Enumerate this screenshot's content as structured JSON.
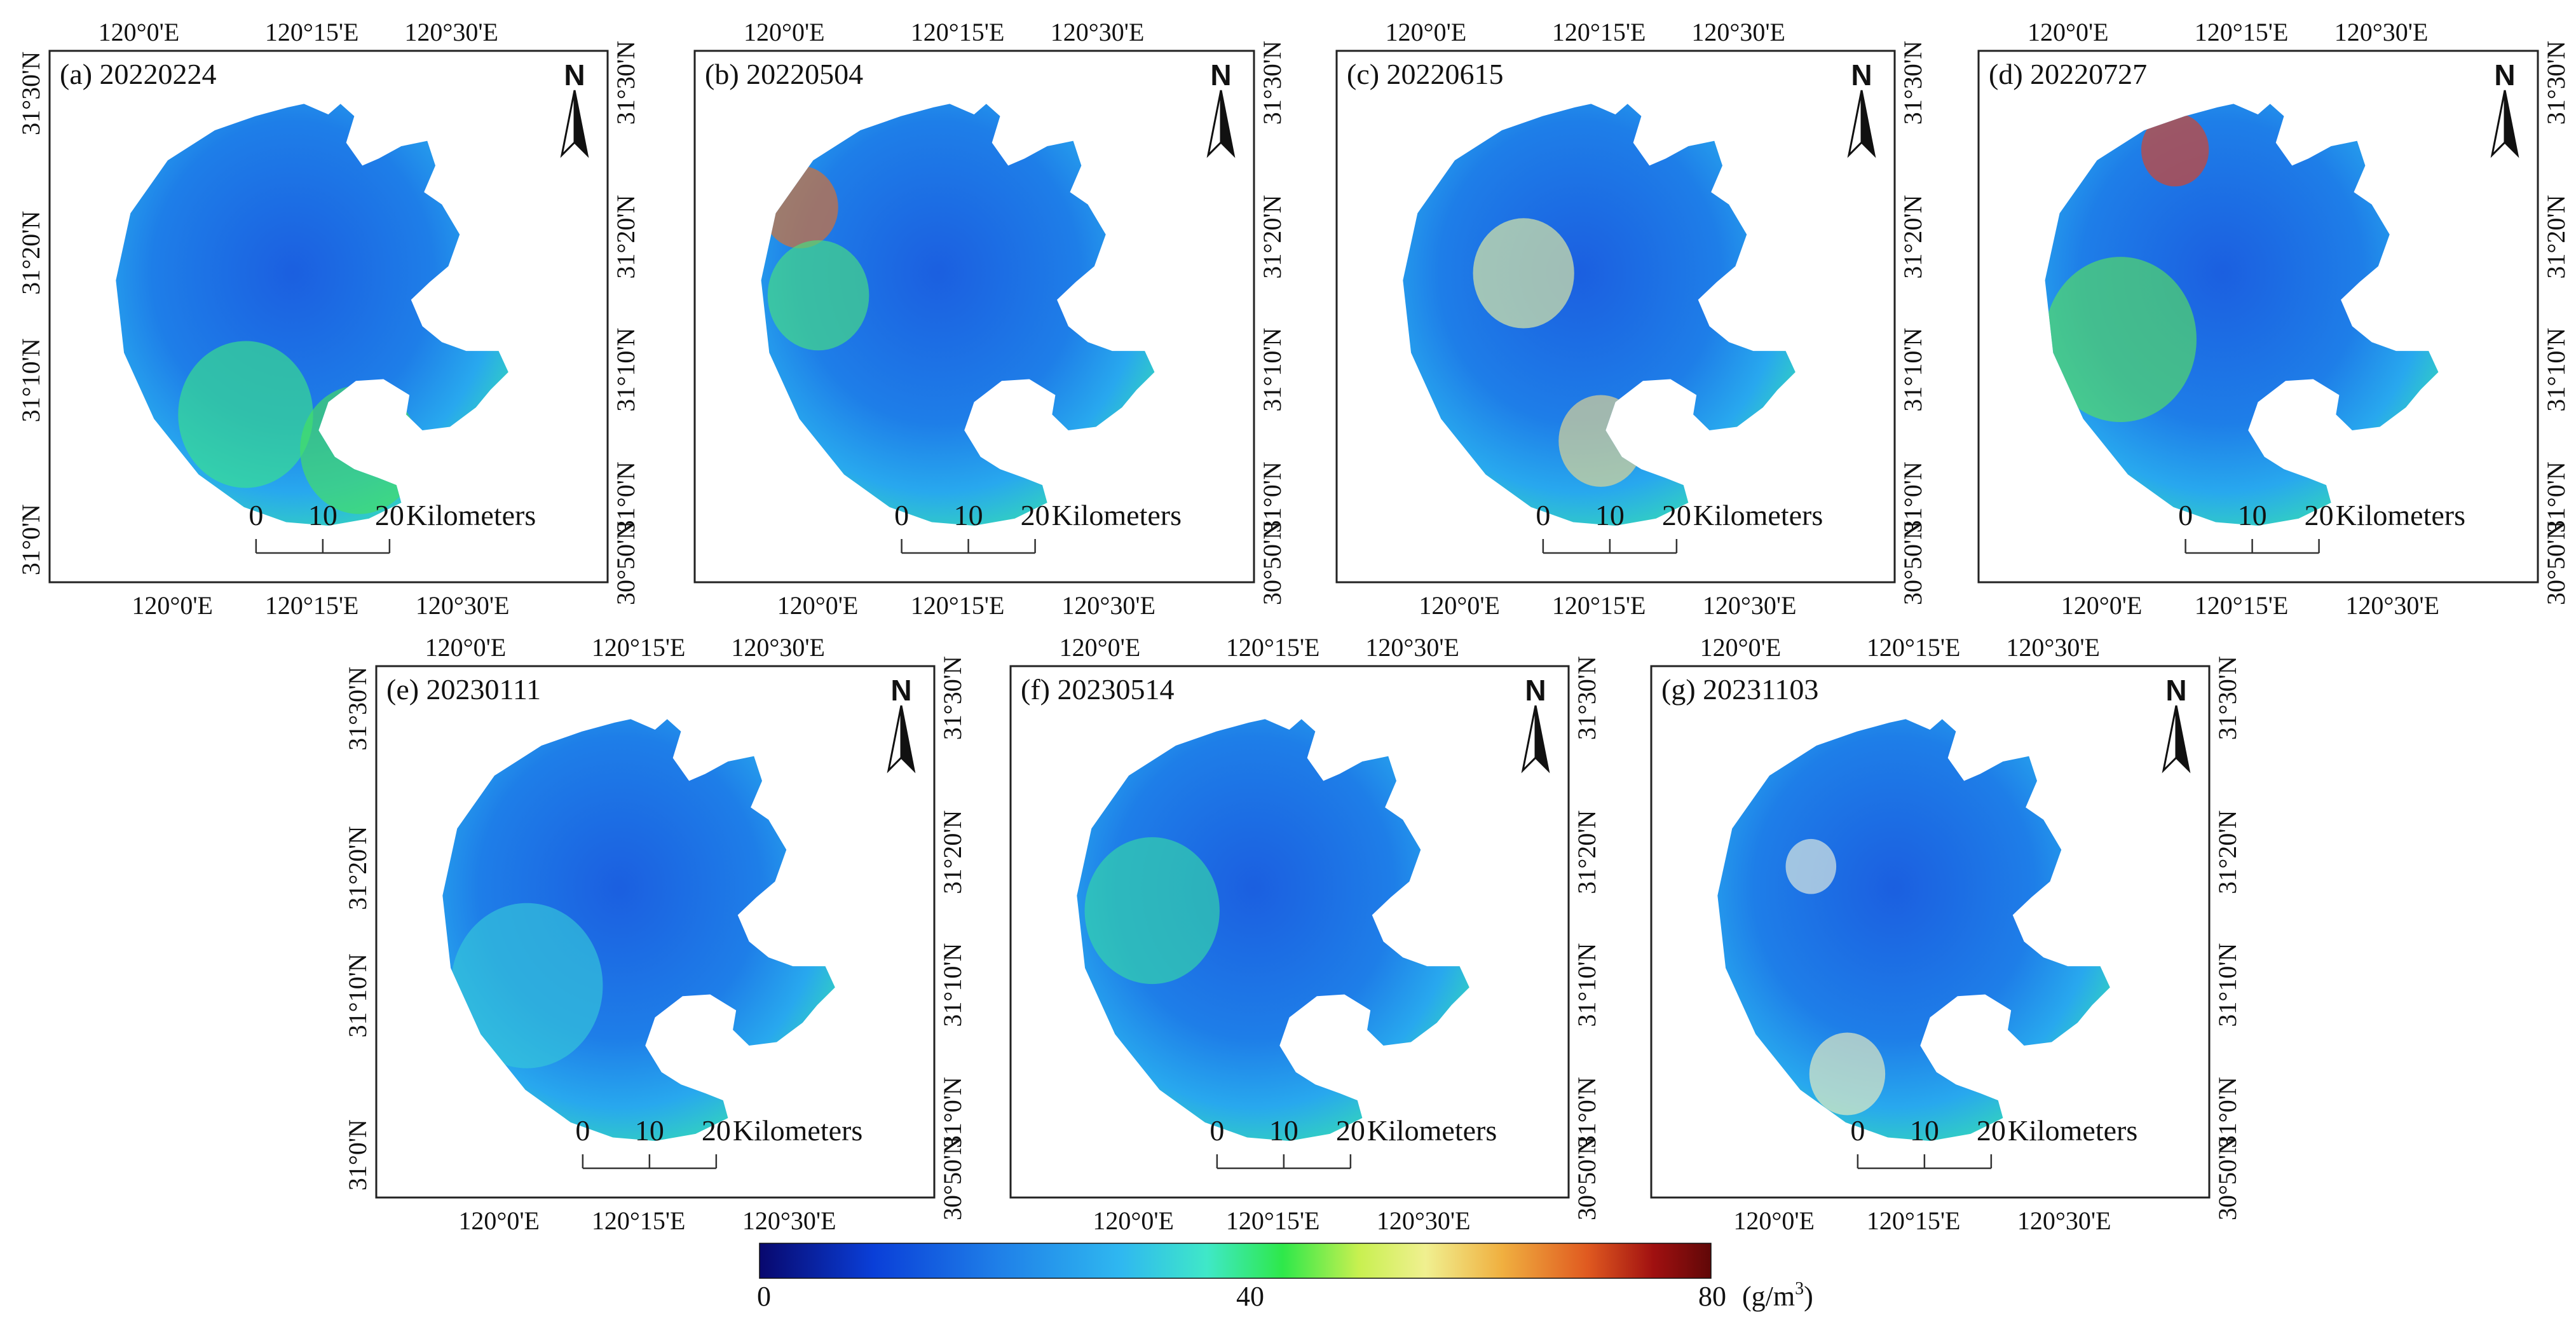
{
  "figure": {
    "lon_ticks": [
      "120°0'E",
      "120°15'E",
      "120°30'E"
    ],
    "lat_ticks": [
      "31°30'N",
      "31°20'N",
      "31°10'N",
      "31°0'N",
      "30°50'N"
    ],
    "scale_bar": {
      "labels": [
        "0",
        "10",
        "20"
      ],
      "unit": "Kilometers"
    },
    "north_label": "N",
    "panels": [
      {
        "id": "a",
        "label": "(a) 20220224"
      },
      {
        "id": "b",
        "label": "(b) 20220504"
      },
      {
        "id": "c",
        "label": "(c) 20220615"
      },
      {
        "id": "d",
        "label": "(d) 20220727"
      },
      {
        "id": "e",
        "label": "(e) 20230111"
      },
      {
        "id": "f",
        "label": "(f) 20230514"
      },
      {
        "id": "g",
        "label": "(g) 20231103"
      }
    ],
    "colorbar": {
      "min_label": "0",
      "mid_label": "40",
      "max_label": "80",
      "unit_base": "(g/m",
      "unit_sup": "3",
      "unit_close": ")",
      "colors": [
        "#08086e",
        "#0a3fd8",
        "#1f7fe8",
        "#2fb8f0",
        "#3fe8c8",
        "#2ee84a",
        "#c8f050",
        "#f0f090",
        "#f0b040",
        "#e05a20",
        "#a01010",
        "#600808"
      ]
    }
  }
}
